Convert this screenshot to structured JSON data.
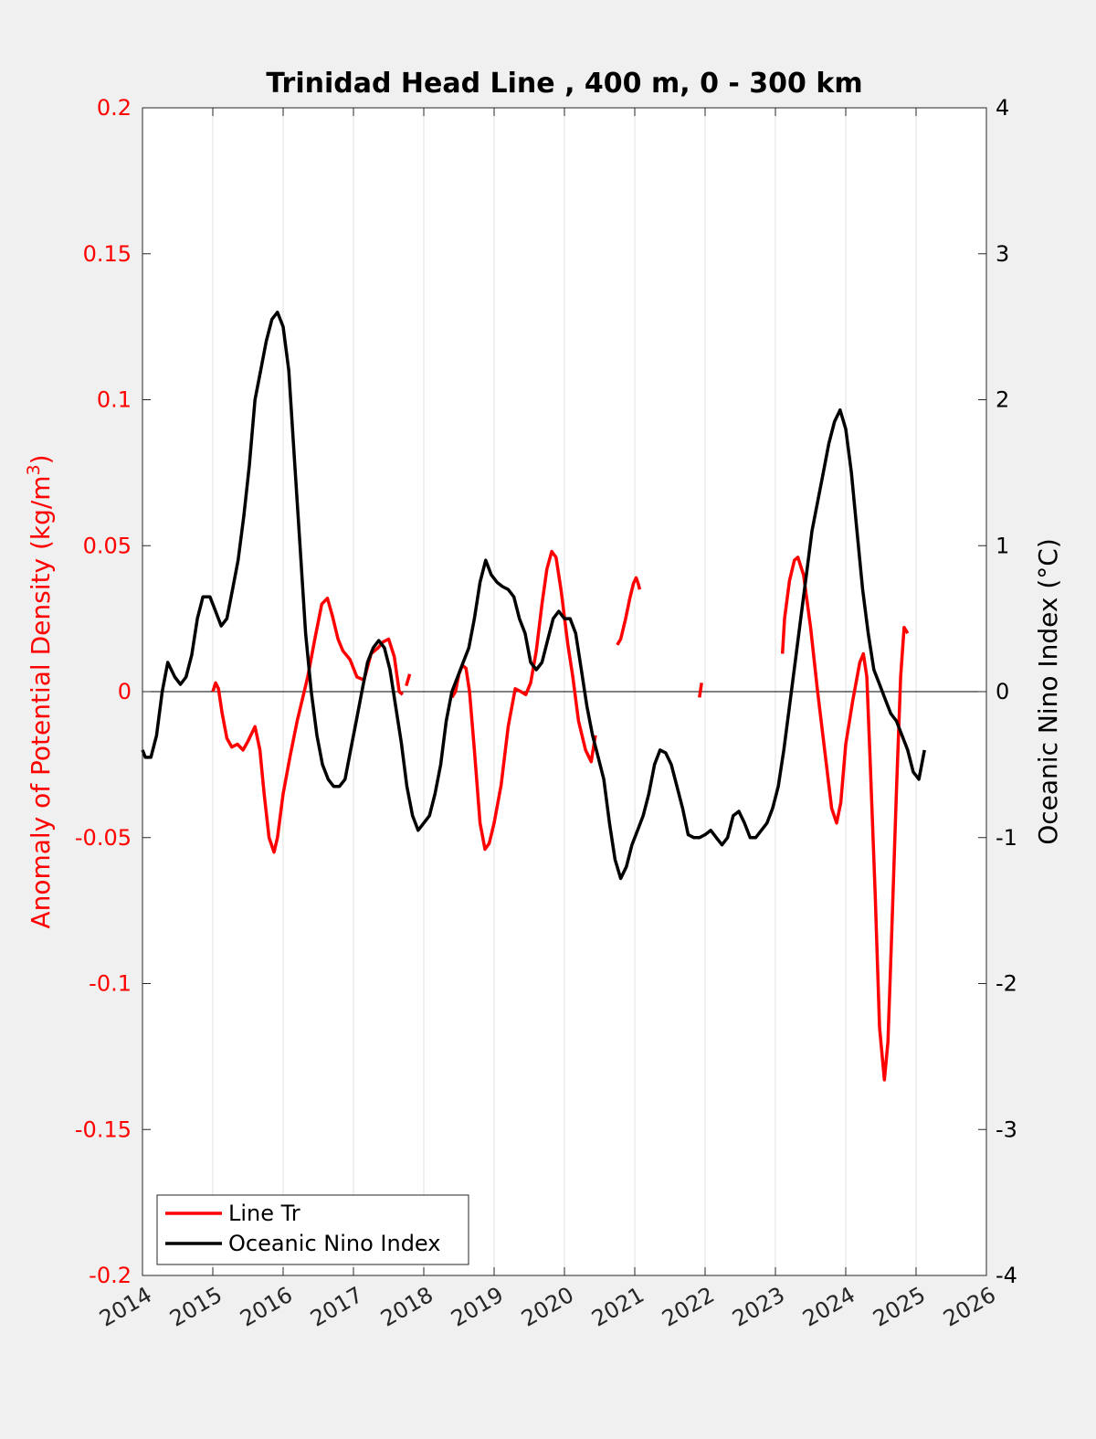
{
  "chart_data": {
    "type": "line",
    "title": "Trinidad Head Line , 400 m, 0 - 300 km",
    "ylabel_left": "Anomaly of Potential Density (kg/m",
    "ylabel_left_sup": "3",
    "ylabel_left_end": ")",
    "ylabel_right": "Oceanic Nino Index (°C)",
    "xlim": [
      2014,
      2026
    ],
    "ylim_left": [
      -0.2,
      0.2
    ],
    "ylim_right": [
      -4,
      4
    ],
    "x_ticks": [
      2014,
      2015,
      2016,
      2017,
      2018,
      2019,
      2020,
      2021,
      2022,
      2023,
      2024,
      2025,
      2026
    ],
    "x_tick_labels": [
      "2014",
      "2015",
      "2016",
      "2017",
      "2018",
      "2019",
      "2020",
      "2021",
      "2022",
      "2023",
      "2024",
      "2025",
      "2026"
    ],
    "y_left_ticks": [
      0.2,
      0.15,
      0.1,
      0.05,
      0,
      -0.05,
      -0.1,
      -0.15,
      -0.2
    ],
    "y_left_tick_labels": [
      "0.2",
      "0.15",
      "0.1",
      "0.05",
      "0",
      "-0.05",
      "-0.1",
      "-0.15",
      "-0.2"
    ],
    "y_right_ticks": [
      4,
      3,
      2,
      1,
      0,
      -1,
      -2,
      -3,
      -4
    ],
    "y_right_tick_labels": [
      "4",
      "3",
      "2",
      "1",
      "0",
      "-1",
      "-2",
      "-3",
      "-4"
    ],
    "grid": "vertical",
    "legend_position": "bottom-left",
    "series": [
      {
        "name": "Line Tr",
        "axis": "left",
        "color": "#ff0000",
        "segments": [
          [
            [
              2015.0,
              0.0
            ],
            [
              2015.04,
              0.003
            ],
            [
              2015.08,
              0.001
            ],
            [
              2015.13,
              -0.007
            ],
            [
              2015.2,
              -0.016
            ],
            [
              2015.27,
              -0.019
            ],
            [
              2015.35,
              -0.018
            ],
            [
              2015.43,
              -0.02
            ],
            [
              2015.5,
              -0.017
            ],
            [
              2015.6,
              -0.012
            ],
            [
              2015.67,
              -0.02
            ],
            [
              2015.73,
              -0.035
            ],
            [
              2015.8,
              -0.05
            ],
            [
              2015.87,
              -0.055
            ],
            [
              2015.92,
              -0.05
            ],
            [
              2016.0,
              -0.035
            ],
            [
              2016.1,
              -0.022
            ],
            [
              2016.2,
              -0.01
            ],
            [
              2016.35,
              0.005
            ],
            [
              2016.45,
              0.018
            ],
            [
              2016.55,
              0.03
            ],
            [
              2016.63,
              0.032
            ],
            [
              2016.7,
              0.026
            ],
            [
              2016.78,
              0.018
            ],
            [
              2016.85,
              0.014
            ],
            [
              2016.95,
              0.011
            ],
            [
              2017.05,
              0.005
            ],
            [
              2017.15,
              0.004
            ],
            [
              2017.25,
              0.013
            ],
            [
              2017.35,
              0.015
            ],
            [
              2017.42,
              0.017
            ],
            [
              2017.5,
              0.018
            ],
            [
              2017.58,
              0.012
            ],
            [
              2017.65,
              0.0
            ],
            [
              2017.7,
              -0.001
            ]
          ],
          [
            [
              2017.75,
              0.002
            ],
            [
              2017.8,
              0.006
            ]
          ],
          [
            [
              2018.4,
              -0.002
            ],
            [
              2018.45,
              0.0
            ],
            [
              2018.5,
              0.006
            ],
            [
              2018.55,
              0.009
            ],
            [
              2018.6,
              0.008
            ],
            [
              2018.65,
              0.0
            ],
            [
              2018.72,
              -0.02
            ],
            [
              2018.8,
              -0.045
            ],
            [
              2018.87,
              -0.054
            ],
            [
              2018.93,
              -0.052
            ],
            [
              2019.0,
              -0.045
            ],
            [
              2019.1,
              -0.032
            ],
            [
              2019.2,
              -0.012
            ],
            [
              2019.3,
              0.001
            ],
            [
              2019.38,
              0.0
            ],
            [
              2019.45,
              -0.001
            ],
            [
              2019.52,
              0.003
            ],
            [
              2019.6,
              0.014
            ],
            [
              2019.68,
              0.03
            ],
            [
              2019.75,
              0.042
            ],
            [
              2019.82,
              0.048
            ],
            [
              2019.88,
              0.046
            ],
            [
              2019.95,
              0.035
            ],
            [
              2020.05,
              0.016
            ],
            [
              2020.12,
              0.005
            ],
            [
              2020.2,
              -0.01
            ],
            [
              2020.3,
              -0.02
            ],
            [
              2020.38,
              -0.024
            ],
            [
              2020.44,
              -0.015
            ]
          ],
          [
            [
              2020.75,
              0.016
            ],
            [
              2020.8,
              0.018
            ],
            [
              2020.87,
              0.025
            ],
            [
              2020.93,
              0.032
            ],
            [
              2020.98,
              0.037
            ],
            [
              2021.02,
              0.039
            ],
            [
              2021.05,
              0.037
            ],
            [
              2021.07,
              0.035
            ]
          ],
          [
            [
              2021.92,
              -0.002
            ],
            [
              2021.95,
              0.003
            ]
          ],
          [
            [
              2023.1,
              0.013
            ],
            [
              2023.13,
              0.025
            ],
            [
              2023.2,
              0.038
            ],
            [
              2023.27,
              0.045
            ],
            [
              2023.32,
              0.046
            ],
            [
              2023.4,
              0.04
            ],
            [
              2023.5,
              0.022
            ],
            [
              2023.6,
              0.0
            ],
            [
              2023.7,
              -0.02
            ],
            [
              2023.8,
              -0.04
            ],
            [
              2023.87,
              -0.045
            ],
            [
              2023.93,
              -0.038
            ],
            [
              2024.0,
              -0.018
            ],
            [
              2024.1,
              -0.003
            ],
            [
              2024.2,
              0.01
            ],
            [
              2024.25,
              0.013
            ],
            [
              2024.3,
              0.005
            ],
            [
              2024.35,
              -0.025
            ],
            [
              2024.42,
              -0.07
            ],
            [
              2024.48,
              -0.115
            ],
            [
              2024.55,
              -0.133
            ],
            [
              2024.6,
              -0.12
            ],
            [
              2024.65,
              -0.085
            ],
            [
              2024.72,
              -0.035
            ],
            [
              2024.78,
              0.005
            ],
            [
              2024.83,
              0.022
            ],
            [
              2024.88,
              0.02
            ]
          ]
        ]
      },
      {
        "name": "Oceanic Nino Index",
        "axis": "right",
        "color": "#000000",
        "segments": [
          [
            [
              2014.0,
              -0.4
            ],
            [
              2014.04,
              -0.45
            ],
            [
              2014.12,
              -0.45
            ],
            [
              2014.2,
              -0.3
            ],
            [
              2014.28,
              0.0
            ],
            [
              2014.36,
              0.2
            ],
            [
              2014.46,
              0.1
            ],
            [
              2014.54,
              0.05
            ],
            [
              2014.62,
              0.1
            ],
            [
              2014.7,
              0.25
            ],
            [
              2014.78,
              0.5
            ],
            [
              2014.86,
              0.65
            ],
            [
              2014.96,
              0.65
            ],
            [
              2015.04,
              0.55
            ],
            [
              2015.12,
              0.45
            ],
            [
              2015.2,
              0.5
            ],
            [
              2015.28,
              0.7
            ],
            [
              2015.36,
              0.9
            ],
            [
              2015.44,
              1.2
            ],
            [
              2015.52,
              1.55
            ],
            [
              2015.6,
              2.0
            ],
            [
              2015.68,
              2.2
            ],
            [
              2015.76,
              2.4
            ],
            [
              2015.84,
              2.55
            ],
            [
              2015.92,
              2.6
            ],
            [
              2016.0,
              2.5
            ],
            [
              2016.08,
              2.2
            ],
            [
              2016.16,
              1.6
            ],
            [
              2016.24,
              1.0
            ],
            [
              2016.32,
              0.4
            ],
            [
              2016.4,
              0.0
            ],
            [
              2016.48,
              -0.3
            ],
            [
              2016.56,
              -0.5
            ],
            [
              2016.64,
              -0.6
            ],
            [
              2016.72,
              -0.65
            ],
            [
              2016.8,
              -0.65
            ],
            [
              2016.88,
              -0.6
            ],
            [
              2016.96,
              -0.4
            ],
            [
              2017.04,
              -0.2
            ],
            [
              2017.12,
              0.0
            ],
            [
              2017.2,
              0.2
            ],
            [
              2017.28,
              0.3
            ],
            [
              2017.36,
              0.35
            ],
            [
              2017.44,
              0.3
            ],
            [
              2017.52,
              0.15
            ],
            [
              2017.6,
              -0.1
            ],
            [
              2017.68,
              -0.35
            ],
            [
              2017.76,
              -0.65
            ],
            [
              2017.84,
              -0.85
            ],
            [
              2017.92,
              -0.95
            ],
            [
              2018.0,
              -0.9
            ],
            [
              2018.08,
              -0.85
            ],
            [
              2018.16,
              -0.7
            ],
            [
              2018.24,
              -0.5
            ],
            [
              2018.32,
              -0.2
            ],
            [
              2018.4,
              0.0
            ],
            [
              2018.48,
              0.1
            ],
            [
              2018.56,
              0.2
            ],
            [
              2018.64,
              0.3
            ],
            [
              2018.72,
              0.5
            ],
            [
              2018.8,
              0.75
            ],
            [
              2018.88,
              0.9
            ],
            [
              2018.96,
              0.8
            ],
            [
              2019.04,
              0.75
            ],
            [
              2019.12,
              0.72
            ],
            [
              2019.2,
              0.7
            ],
            [
              2019.28,
              0.65
            ],
            [
              2019.36,
              0.5
            ],
            [
              2019.44,
              0.4
            ],
            [
              2019.52,
              0.2
            ],
            [
              2019.6,
              0.15
            ],
            [
              2019.68,
              0.2
            ],
            [
              2019.76,
              0.35
            ],
            [
              2019.84,
              0.5
            ],
            [
              2019.92,
              0.55
            ],
            [
              2020.0,
              0.5
            ],
            [
              2020.08,
              0.5
            ],
            [
              2020.16,
              0.4
            ],
            [
              2020.24,
              0.15
            ],
            [
              2020.32,
              -0.1
            ],
            [
              2020.4,
              -0.3
            ],
            [
              2020.48,
              -0.45
            ],
            [
              2020.56,
              -0.6
            ],
            [
              2020.64,
              -0.9
            ],
            [
              2020.72,
              -1.15
            ],
            [
              2020.8,
              -1.28
            ],
            [
              2020.88,
              -1.2
            ],
            [
              2020.96,
              -1.05
            ],
            [
              2021.04,
              -0.95
            ],
            [
              2021.12,
              -0.85
            ],
            [
              2021.2,
              -0.7
            ],
            [
              2021.28,
              -0.5
            ],
            [
              2021.36,
              -0.4
            ],
            [
              2021.44,
              -0.42
            ],
            [
              2021.52,
              -0.5
            ],
            [
              2021.6,
              -0.65
            ],
            [
              2021.68,
              -0.8
            ],
            [
              2021.76,
              -0.98
            ],
            [
              2021.84,
              -1.0
            ],
            [
              2021.92,
              -1.0
            ],
            [
              2022.0,
              -0.98
            ],
            [
              2022.08,
              -0.95
            ],
            [
              2022.16,
              -1.0
            ],
            [
              2022.24,
              -1.05
            ],
            [
              2022.32,
              -1.0
            ],
            [
              2022.4,
              -0.85
            ],
            [
              2022.48,
              -0.82
            ],
            [
              2022.56,
              -0.9
            ],
            [
              2022.64,
              -1.0
            ],
            [
              2022.72,
              -1.0
            ],
            [
              2022.8,
              -0.95
            ],
            [
              2022.88,
              -0.9
            ],
            [
              2022.96,
              -0.8
            ],
            [
              2023.04,
              -0.65
            ],
            [
              2023.12,
              -0.4
            ],
            [
              2023.2,
              -0.1
            ],
            [
              2023.28,
              0.2
            ],
            [
              2023.36,
              0.5
            ],
            [
              2023.44,
              0.8
            ],
            [
              2023.52,
              1.1
            ],
            [
              2023.6,
              1.3
            ],
            [
              2023.68,
              1.5
            ],
            [
              2023.76,
              1.7
            ],
            [
              2023.84,
              1.85
            ],
            [
              2023.92,
              1.93
            ],
            [
              2024.0,
              1.8
            ],
            [
              2024.08,
              1.5
            ],
            [
              2024.16,
              1.1
            ],
            [
              2024.24,
              0.7
            ],
            [
              2024.32,
              0.4
            ],
            [
              2024.4,
              0.15
            ],
            [
              2024.48,
              0.05
            ],
            [
              2024.56,
              -0.05
            ],
            [
              2024.64,
              -0.15
            ],
            [
              2024.72,
              -0.2
            ],
            [
              2024.8,
              -0.3
            ],
            [
              2024.88,
              -0.4
            ],
            [
              2024.96,
              -0.55
            ],
            [
              2025.04,
              -0.6
            ],
            [
              2025.12,
              -0.4
            ]
          ]
        ]
      }
    ]
  }
}
